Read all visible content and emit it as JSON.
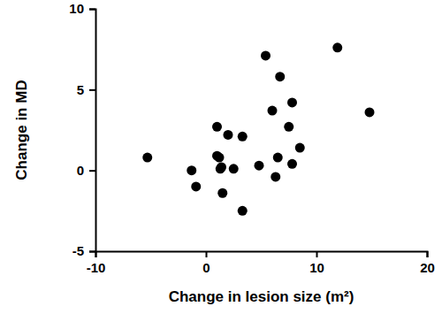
{
  "chart_data": {
    "type": "scatter",
    "x_label": "Change in lesion size (m²)",
    "y_label": "Change in MD",
    "x": [
      -5.3,
      -1.3,
      -0.9,
      1.0,
      1.0,
      1.2,
      1.3,
      1.4,
      1.5,
      2.0,
      2.5,
      3.3,
      3.3,
      4.8,
      5.4,
      6.0,
      6.3,
      6.5,
      6.7,
      7.5,
      7.8,
      7.8,
      8.5,
      11.9,
      14.8
    ],
    "values": [
      0.8,
      0.0,
      -1.0,
      2.7,
      0.9,
      0.8,
      0.1,
      0.2,
      -1.4,
      2.2,
      0.1,
      2.1,
      -2.5,
      0.3,
      7.1,
      3.7,
      -0.4,
      0.8,
      5.8,
      2.7,
      4.2,
      0.4,
      1.4,
      7.6,
      3.6
    ],
    "color": "#000000",
    "marker": "circle",
    "xlim": [
      -10,
      20
    ],
    "xticks": [
      -10,
      0,
      10,
      20
    ],
    "ylim": [
      -5,
      10
    ],
    "yticks": [
      -5,
      0,
      5,
      10
    ],
    "grid": false
  }
}
